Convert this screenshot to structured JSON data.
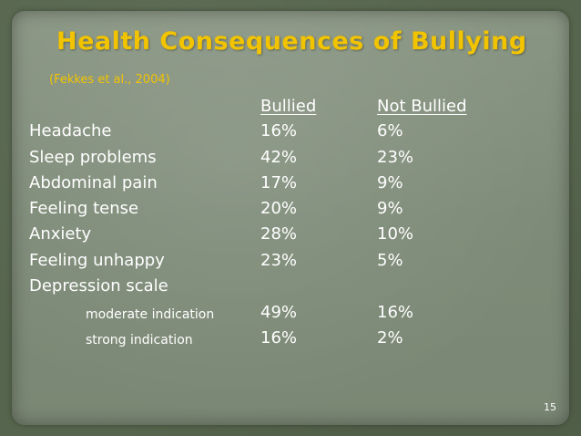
{
  "slide": {
    "title": "Health Consequences of Bullying",
    "subtitle": "(Fekkes et al., 2004)",
    "page_number": "15"
  },
  "table": {
    "headers": [
      "Bullied",
      "Not Bullied"
    ],
    "rows": [
      {
        "label": "Headache",
        "bullied": "16%",
        "not_bullied": "6%"
      },
      {
        "label": "Sleep problems",
        "bullied": "42%",
        "not_bullied": "23%"
      },
      {
        "label": "Abdominal pain",
        "bullied": "17%",
        "not_bullied": "9%"
      },
      {
        "label": "Feeling tense",
        "bullied": "20%",
        "not_bullied": "9%"
      },
      {
        "label": "Anxiety",
        "bullied": "28%",
        "not_bullied": "10%"
      },
      {
        "label": "Feeling unhappy",
        "bullied": "23%",
        "not_bullied": "5%"
      },
      {
        "label": "Depression scale",
        "bullied": "",
        "not_bullied": ""
      },
      {
        "label": "moderate indication",
        "bullied": "49%",
        "not_bullied": "16%"
      },
      {
        "label": "strong indication",
        "bullied": "16%",
        "not_bullied": "2%"
      }
    ]
  },
  "colors": {
    "title": "#f2c400",
    "text": "#ffffff",
    "panel": "#818e7b",
    "background": "#56654d"
  }
}
